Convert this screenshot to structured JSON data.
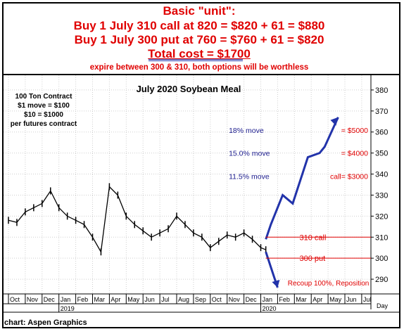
{
  "header": {
    "line1": "Basic \"unit\":",
    "line2": "Buy 1 July 310 call at 820 = $820 + 61 = $880",
    "line3": "Buy 1 July 300 put at 760 = $760 + 61 = $820",
    "line4": "Total cost  = $1700",
    "line5": "expire between 300 & 310, both options will be worthless"
  },
  "chart_data": {
    "type": "line",
    "title": "July 2020 Soybean Meal",
    "contract_note": [
      "100 Ton Contract",
      "$1 move = $100",
      "$10 = $1000",
      "per futures contract"
    ],
    "yaxis": {
      "ticks": [
        290,
        300,
        310,
        320,
        330,
        340,
        350,
        360,
        370,
        380
      ],
      "ylim": [
        283,
        387
      ],
      "side": "right"
    },
    "xaxis": {
      "months": [
        "Oct",
        "Nov",
        "Dec",
        "Jan",
        "Feb",
        "Mar",
        "Apr",
        "May",
        "Jun",
        "Jul",
        "Aug",
        "Sep",
        "Oct",
        "Nov",
        "Dec",
        "Jan",
        "Feb",
        "Mar",
        "Apr",
        "May",
        "Jun",
        "Jul"
      ],
      "years": [
        "2019",
        "2020"
      ],
      "end_label": "Day"
    },
    "price_series": {
      "name": "price",
      "x": [
        0,
        0.5,
        1,
        1.5,
        2,
        2.5,
        3,
        3.5,
        4,
        4.5,
        5,
        5.5,
        6,
        6.5,
        7,
        7.5,
        8,
        8.5,
        9,
        9.5,
        10,
        10.5,
        11,
        11.5,
        12,
        12.5,
        13,
        13.5,
        14,
        14.5,
        15,
        15.3
      ],
      "y": [
        318,
        317,
        322,
        324,
        326,
        332,
        324,
        320,
        318,
        316,
        310,
        303,
        334,
        330,
        320,
        316,
        313,
        310,
        312,
        314,
        320,
        316,
        312,
        310,
        305,
        308,
        311,
        310,
        312,
        309,
        305,
        304
      ]
    },
    "projection_up": {
      "x": [
        15.3,
        15.6,
        16.3,
        16.9,
        17.8,
        18.5,
        18.8,
        19.6
      ],
      "y": [
        309,
        316,
        330,
        326,
        348,
        350,
        353,
        367
      ]
    },
    "projection_down": {
      "x": [
        15.3,
        16.0
      ],
      "y": [
        303,
        286
      ]
    },
    "levels": [
      {
        "value": 310,
        "label": "310 call",
        "color": "#e00000"
      },
      {
        "value": 300,
        "label": "300 put",
        "color": "#e00000"
      }
    ],
    "annotations": [
      {
        "text": "18% move",
        "value": "= $5000",
        "y": 361
      },
      {
        "text": "15.0% move",
        "value": "= $4000",
        "y": 350
      },
      {
        "text": "11.5% move",
        "value": "call= $3000",
        "y": 339
      }
    ],
    "recoup": "Recoup 100%, Reposition"
  },
  "colors": {
    "red": "#e00000",
    "blue": "#2233aa",
    "navy": "#1a1a8c",
    "grid": "#cfcfcf"
  },
  "credit": "chart: Aspen Graphics"
}
